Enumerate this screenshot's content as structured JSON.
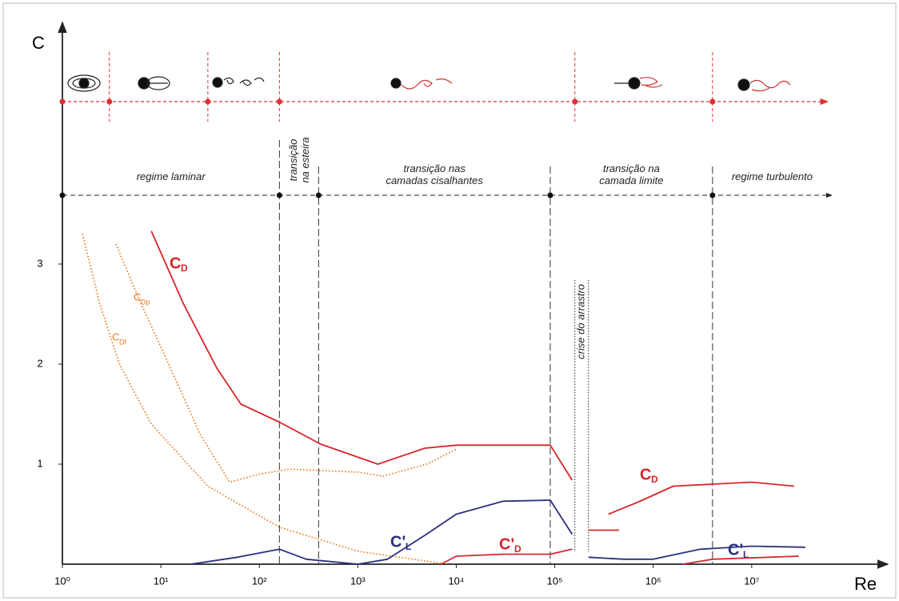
{
  "chart_data": {
    "type": "line",
    "y_axis_label": "C",
    "x_axis_label": "Re",
    "log_x": true,
    "xlim": [
      1,
      200000000
    ],
    "ylim": [
      0,
      5.4
    ],
    "xticks": [
      {
        "value": 1,
        "label": "10⁰"
      },
      {
        "value": 10,
        "label": "10¹"
      },
      {
        "value": 100,
        "label": "10²"
      },
      {
        "value": 1000,
        "label": "10³"
      },
      {
        "value": 10000,
        "label": "10⁴"
      },
      {
        "value": 100000,
        "label": "10⁵"
      },
      {
        "value": 1000000,
        "label": "10⁶"
      },
      {
        "value": 10000000,
        "label": "10⁷"
      }
    ],
    "yticks": [
      1,
      2,
      3
    ],
    "wake_boundaries": [
      3,
      30,
      160,
      160000,
      4000000
    ],
    "regime_boundaries": [
      160,
      400,
      90000,
      4000000
    ],
    "regimes": [
      [
        "regime laminar"
      ],
      [
        "transição",
        "na esteira"
      ],
      [
        "transição nas",
        "camadas cisalhantes"
      ],
      [
        "transição na",
        "camada limite"
      ],
      [
        "regime turbulento"
      ]
    ],
    "drag_crisis": {
      "label": "crise do arrastro",
      "x": [
        160000,
        220000
      ]
    },
    "series": [
      {
        "name": "C",
        "subscript": "D",
        "color": "#d7262b",
        "style": "solid",
        "x": [
          8,
          17,
          37,
          65,
          160,
          420,
          1600,
          4800,
          10000,
          90000,
          150000,
          180000,
          220000,
          450000,
          400000,
          350000,
          700000,
          1600000,
          4000000,
          10000000,
          27000000
        ],
        "values": [
          3.33,
          2.6,
          1.96,
          1.6,
          1.42,
          1.2,
          1.0,
          1.16,
          1.19,
          1.19,
          0.84,
          null,
          0.34,
          0.34,
          null,
          0.5,
          0.62,
          0.78,
          0.8,
          0.82,
          0.78
        ]
      },
      {
        "name": "C",
        "subscript": "Dp",
        "color": "#e87d1e",
        "style": "dotted",
        "x": [
          3.5,
          6,
          12,
          25,
          50,
          100,
          200,
          1000,
          1800,
          5000,
          10000
        ],
        "values": [
          3.2,
          2.65,
          2.0,
          1.3,
          0.82,
          0.9,
          0.95,
          0.92,
          0.88,
          1.0,
          1.15
        ]
      },
      {
        "name": "C",
        "subscript": "Df",
        "color": "#e87d1e",
        "style": "dotted",
        "x": [
          1.6,
          2.4,
          3.8,
          8,
          30,
          160,
          1000,
          7000
        ],
        "values": [
          3.3,
          2.6,
          2.0,
          1.4,
          0.78,
          0.37,
          0.13,
          0.01
        ]
      },
      {
        "name": "C'",
        "subscript": "L",
        "color": "#2b2f7f",
        "style": "solid",
        "x": [
          20,
          60,
          160,
          300,
          1000,
          2000,
          5000,
          10000,
          30000,
          90000,
          150000,
          180000,
          220000,
          500000,
          1000000,
          3000000,
          10000000,
          35000000
        ],
        "values": [
          0,
          0.07,
          0.15,
          0.05,
          0,
          0.05,
          0.3,
          0.5,
          0.63,
          0.64,
          0.3,
          null,
          0.07,
          0.05,
          0.05,
          0.15,
          0.18,
          0.17
        ]
      },
      {
        "name": "C'",
        "subscript": "D",
        "color": "#d7262b",
        "style": "solid",
        "x": [
          7000,
          10000,
          30000,
          90000,
          150000,
          1000000,
          2000000,
          4000000,
          30000000
        ],
        "values": [
          0,
          0.08,
          0.1,
          0.1,
          0.15,
          null,
          0,
          0.05,
          0.08
        ]
      }
    ]
  }
}
